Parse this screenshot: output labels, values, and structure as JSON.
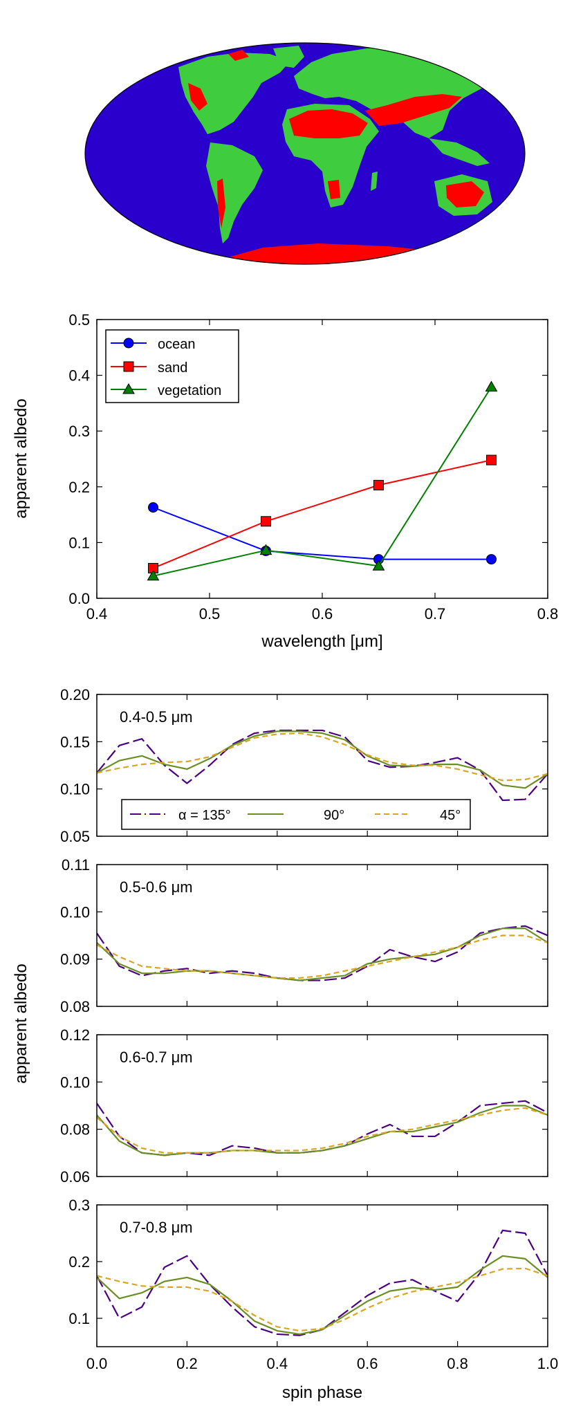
{
  "map": {
    "type": "mollweide-map",
    "legend_categories": [
      "ocean",
      "sand",
      "vegetation"
    ],
    "colors": {
      "ocean": "#2a00cc",
      "sand": "#ff0000",
      "vegetation": "#3fcc3f"
    }
  },
  "chart_data": [
    {
      "type": "line",
      "title": "",
      "xlabel": "wavelength [μm]",
      "ylabel": "apparent albedo",
      "xlim": [
        0.4,
        0.8
      ],
      "ylim": [
        0.0,
        0.5
      ],
      "xticks": [
        0.4,
        0.5,
        0.6,
        0.7,
        0.8
      ],
      "yticks": [
        0.0,
        0.1,
        0.2,
        0.3,
        0.4,
        0.5
      ],
      "xtick_labels": [
        "0.4",
        "0.5",
        "0.6",
        "0.7",
        "0.8"
      ],
      "ytick_labels": [
        "0.0",
        "0.1",
        "0.2",
        "0.3",
        "0.4",
        "0.5"
      ],
      "legend_position": "top-left",
      "x": [
        0.45,
        0.55,
        0.65,
        0.75
      ],
      "series": [
        {
          "name": "ocean",
          "values": [
            0.163,
            0.085,
            0.07,
            0.07
          ],
          "color": "#0000ff",
          "marker": "circle"
        },
        {
          "name": "sand",
          "values": [
            0.054,
            0.138,
            0.203,
            0.248
          ],
          "color": "#ff0000",
          "marker": "square"
        },
        {
          "name": "vegetation",
          "values": [
            0.04,
            0.086,
            0.058,
            0.379
          ],
          "color": "#008000",
          "marker": "triangle"
        }
      ]
    },
    {
      "type": "line",
      "panel_label": "0.4-0.5 μm",
      "ylim": [
        0.05,
        0.2
      ],
      "yticks": [
        0.05,
        0.1,
        0.15,
        0.2
      ],
      "ytick_labels": [
        "0.05",
        "0.10",
        "0.15",
        "0.20"
      ],
      "x": [
        0,
        0.05,
        0.1,
        0.15,
        0.2,
        0.25,
        0.3,
        0.35,
        0.4,
        0.45,
        0.5,
        0.55,
        0.6,
        0.65,
        0.7,
        0.75,
        0.8,
        0.85,
        0.9,
        0.95,
        1.0
      ],
      "series": [
        {
          "name": "α = 135°",
          "color": "#4b0082",
          "dash": "long",
          "values": [
            0.117,
            0.146,
            0.153,
            0.125,
            0.106,
            0.125,
            0.147,
            0.159,
            0.162,
            0.162,
            0.162,
            0.155,
            0.13,
            0.123,
            0.124,
            0.128,
            0.133,
            0.12,
            0.088,
            0.089,
            0.116
          ]
        },
        {
          "name": "90°",
          "color": "#6b8e23",
          "dash": "solid",
          "values": [
            0.117,
            0.13,
            0.135,
            0.126,
            0.121,
            0.132,
            0.146,
            0.156,
            0.161,
            0.161,
            0.159,
            0.152,
            0.135,
            0.125,
            0.124,
            0.126,
            0.126,
            0.12,
            0.104,
            0.101,
            0.116
          ]
        },
        {
          "name": "45°",
          "color": "#daa520",
          "dash": "short",
          "values": [
            0.117,
            0.122,
            0.126,
            0.128,
            0.129,
            0.134,
            0.144,
            0.154,
            0.158,
            0.159,
            0.155,
            0.147,
            0.136,
            0.128,
            0.125,
            0.125,
            0.121,
            0.115,
            0.109,
            0.11,
            0.116
          ]
        }
      ],
      "legend": {
        "entries": [
          "α = 135°",
          "90°",
          "45°"
        ],
        "position": "bottom"
      }
    },
    {
      "type": "line",
      "panel_label": "0.5-0.6 μm",
      "ylim": [
        0.08,
        0.11
      ],
      "yticks": [
        0.08,
        0.09,
        0.1,
        0.11
      ],
      "ytick_labels": [
        "0.08",
        "0.09",
        "0.10",
        "0.11"
      ],
      "x": [
        0,
        0.05,
        0.1,
        0.15,
        0.2,
        0.25,
        0.3,
        0.35,
        0.4,
        0.45,
        0.5,
        0.55,
        0.6,
        0.65,
        0.7,
        0.75,
        0.8,
        0.85,
        0.9,
        0.95,
        1.0
      ],
      "series": [
        {
          "name": "α = 135°",
          "color": "#4b0082",
          "dash": "long",
          "values": [
            0.0955,
            0.0885,
            0.0865,
            0.0875,
            0.088,
            0.087,
            0.0875,
            0.087,
            0.086,
            0.0855,
            0.0855,
            0.086,
            0.0885,
            0.092,
            0.0905,
            0.0895,
            0.0915,
            0.0955,
            0.0965,
            0.097,
            0.095
          ]
        },
        {
          "name": "90°",
          "color": "#6b8e23",
          "dash": "solid",
          "values": [
            0.0935,
            0.089,
            0.087,
            0.087,
            0.0875,
            0.0875,
            0.087,
            0.0865,
            0.086,
            0.0855,
            0.086,
            0.0865,
            0.089,
            0.09,
            0.0905,
            0.091,
            0.0925,
            0.095,
            0.0965,
            0.0965,
            0.0935
          ]
        },
        {
          "name": "45°",
          "color": "#daa520",
          "dash": "short",
          "values": [
            0.093,
            0.0905,
            0.0885,
            0.088,
            0.0875,
            0.0875,
            0.087,
            0.0865,
            0.086,
            0.086,
            0.0865,
            0.0875,
            0.0885,
            0.0895,
            0.0905,
            0.0915,
            0.0925,
            0.094,
            0.095,
            0.095,
            0.0935
          ]
        }
      ]
    },
    {
      "type": "line",
      "panel_label": "0.6-0.7 μm",
      "ylim": [
        0.06,
        0.12
      ],
      "yticks": [
        0.06,
        0.08,
        0.1,
        0.12
      ],
      "ytick_labels": [
        "0.06",
        "0.08",
        "0.10",
        "0.12"
      ],
      "x": [
        0,
        0.05,
        0.1,
        0.15,
        0.2,
        0.25,
        0.3,
        0.35,
        0.4,
        0.45,
        0.5,
        0.55,
        0.6,
        0.65,
        0.7,
        0.75,
        0.8,
        0.85,
        0.9,
        0.95,
        1.0
      ],
      "series": [
        {
          "name": "α = 135°",
          "color": "#4b0082",
          "dash": "long",
          "values": [
            0.091,
            0.077,
            0.07,
            0.069,
            0.07,
            0.069,
            0.073,
            0.072,
            0.07,
            0.07,
            0.071,
            0.073,
            0.078,
            0.082,
            0.077,
            0.077,
            0.083,
            0.09,
            0.091,
            0.092,
            0.087
          ]
        },
        {
          "name": "90°",
          "color": "#6b8e23",
          "dash": "solid",
          "values": [
            0.086,
            0.075,
            0.07,
            0.069,
            0.07,
            0.07,
            0.071,
            0.071,
            0.07,
            0.07,
            0.071,
            0.073,
            0.076,
            0.079,
            0.079,
            0.081,
            0.083,
            0.087,
            0.09,
            0.09,
            0.086
          ]
        },
        {
          "name": "45°",
          "color": "#daa520",
          "dash": "short",
          "values": [
            0.085,
            0.077,
            0.072,
            0.07,
            0.07,
            0.07,
            0.071,
            0.071,
            0.071,
            0.071,
            0.072,
            0.074,
            0.077,
            0.079,
            0.08,
            0.082,
            0.084,
            0.086,
            0.088,
            0.089,
            0.086
          ]
        }
      ]
    },
    {
      "type": "line",
      "panel_label": "0.7-0.8 μm",
      "xlabel": "spin phase",
      "xlim": [
        0.0,
        1.0
      ],
      "xticks": [
        0.0,
        0.2,
        0.4,
        0.6,
        0.8,
        1.0
      ],
      "xtick_labels": [
        "0.0",
        "0.2",
        "0.4",
        "0.6",
        "0.8",
        "1.0"
      ],
      "ylim": [
        0.05,
        0.3
      ],
      "yticks": [
        0.1,
        0.2,
        0.3
      ],
      "ytick_labels": [
        "0.1",
        "0.2",
        "0.3"
      ],
      "x": [
        0,
        0.05,
        0.1,
        0.15,
        0.2,
        0.25,
        0.3,
        0.35,
        0.4,
        0.45,
        0.5,
        0.55,
        0.6,
        0.65,
        0.7,
        0.75,
        0.8,
        0.85,
        0.9,
        0.95,
        1.0
      ],
      "series": [
        {
          "name": "α = 135°",
          "color": "#4b0082",
          "dash": "long",
          "values": [
            0.175,
            0.1,
            0.12,
            0.19,
            0.21,
            0.16,
            0.12,
            0.085,
            0.072,
            0.07,
            0.08,
            0.11,
            0.14,
            0.162,
            0.168,
            0.148,
            0.13,
            0.18,
            0.255,
            0.25,
            0.175
          ]
        },
        {
          "name": "90°",
          "color": "#6b8e23",
          "dash": "solid",
          "values": [
            0.172,
            0.135,
            0.145,
            0.165,
            0.172,
            0.16,
            0.13,
            0.095,
            0.078,
            0.072,
            0.08,
            0.105,
            0.13,
            0.148,
            0.154,
            0.15,
            0.155,
            0.185,
            0.21,
            0.205,
            0.172
          ]
        },
        {
          "name": "45°",
          "color": "#daa520",
          "dash": "short",
          "values": [
            0.175,
            0.165,
            0.157,
            0.155,
            0.155,
            0.148,
            0.13,
            0.105,
            0.085,
            0.078,
            0.082,
            0.098,
            0.118,
            0.135,
            0.147,
            0.155,
            0.163,
            0.175,
            0.187,
            0.188,
            0.175
          ]
        }
      ]
    }
  ],
  "shared_ylabel_bottom": "apparent albedo"
}
